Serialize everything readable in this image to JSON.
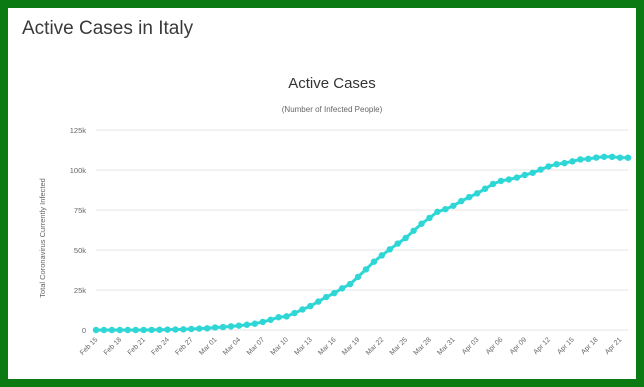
{
  "page": {
    "title": "Active Cases in Italy"
  },
  "colors": {
    "frame": "#0b7a12",
    "series": "#2ed6d6",
    "grid": "#e6e6e6"
  },
  "chart_data": {
    "type": "line",
    "title": "Active Cases",
    "subtitle": "(Number of Infected People)",
    "ylabel": "Total Coronavirus Currently Infected",
    "xlabel": "",
    "ylim": [
      0,
      125000
    ],
    "yticks": [
      0,
      25000,
      50000,
      75000,
      100000,
      125000
    ],
    "ytick_labels": [
      "0",
      "25k",
      "50k",
      "75k",
      "100k",
      "125k"
    ],
    "xtick_labels": [
      "Feb 15",
      "Feb 18",
      "Feb 21",
      "Feb 24",
      "Feb 27",
      "Mar 01",
      "Mar 04",
      "Mar 07",
      "Mar 10",
      "Mar 13",
      "Mar 16",
      "Mar 19",
      "Mar 22",
      "Mar 25",
      "Mar 28",
      "Mar 31",
      "Apr 03",
      "Apr 06",
      "Apr 09",
      "Apr 12",
      "Apr 15",
      "Apr 18",
      "Apr 21"
    ],
    "grid": true,
    "legend": "none",
    "series": [
      {
        "x": [
          "Feb 15",
          "Feb 16",
          "Feb 17",
          "Feb 18",
          "Feb 19",
          "Feb 20",
          "Feb 21",
          "Feb 22",
          "Feb 23",
          "Feb 24",
          "Feb 25",
          "Feb 26",
          "Feb 27",
          "Feb 28",
          "Feb 29",
          "Mar 01",
          "Mar 02",
          "Mar 03",
          "Mar 04",
          "Mar 05",
          "Mar 06",
          "Mar 07",
          "Mar 08",
          "Mar 09",
          "Mar 10",
          "Mar 11",
          "Mar 12",
          "Mar 13",
          "Mar 14",
          "Mar 15",
          "Mar 16",
          "Mar 17",
          "Mar 18",
          "Mar 19",
          "Mar 20",
          "Mar 21",
          "Mar 22",
          "Mar 23",
          "Mar 24",
          "Mar 25",
          "Mar 26",
          "Mar 27",
          "Mar 28",
          "Mar 29",
          "Mar 30",
          "Mar 31",
          "Apr 01",
          "Apr 02",
          "Apr 03",
          "Apr 04",
          "Apr 05",
          "Apr 06",
          "Apr 07",
          "Apr 08",
          "Apr 09",
          "Apr 10",
          "Apr 11",
          "Apr 12",
          "Apr 13",
          "Apr 14",
          "Apr 15",
          "Apr 16",
          "Apr 17",
          "Apr 18",
          "Apr 19",
          "Apr 20",
          "Apr 21",
          "Apr 22"
        ],
        "values": [
          3,
          3,
          3,
          3,
          3,
          3,
          20,
          62,
          155,
          229,
          322,
          400,
          650,
          888,
          1049,
          1577,
          1835,
          2263,
          2706,
          3296,
          3916,
          5061,
          6387,
          7985,
          8514,
          10590,
          12839,
          14955,
          17750,
          20603,
          23073,
          26062,
          28710,
          33190,
          37860,
          42681,
          46638,
          50418,
          54030,
          57521,
          62013,
          66414,
          70065,
          73880,
          75528,
          77635,
          80572,
          83049,
          85388,
          88274,
          91246,
          93187,
          94067,
          95262,
          96877,
          98273,
          100269,
          102253,
          103616,
          104291,
          105418,
          106607,
          106962,
          107771,
          108257,
          108237,
          107709,
          107699
        ]
      }
    ]
  }
}
